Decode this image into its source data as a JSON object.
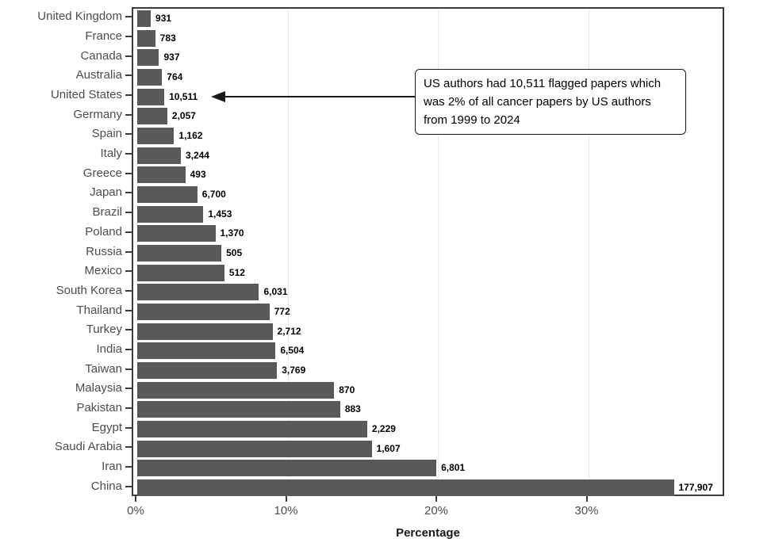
{
  "colors": {
    "background": "#ffffff",
    "bar": "#595959",
    "axis_text": "#4d4d4d",
    "value_label": "#000000",
    "panel_border": "#3b3b3b",
    "gridline": "#e8e8e8",
    "annotation_border": "#1a1a1a"
  },
  "chart_data": {
    "type": "bar",
    "orientation": "horizontal",
    "title": "",
    "xlabel": "Percentage",
    "ylabel": "",
    "xlim": [
      0,
      39.4
    ],
    "grid": "vertical major gridlines only",
    "legend": "none",
    "x_ticks": [
      {
        "value": 0,
        "label": "0%"
      },
      {
        "value": 10,
        "label": "10%"
      },
      {
        "value": 20,
        "label": "20%"
      },
      {
        "value": 30,
        "label": "30%"
      }
    ],
    "categories": [
      "United Kingdom",
      "France",
      "Canada",
      "Australia",
      "United States",
      "Germany",
      "Spain",
      "Italy",
      "Greece",
      "Japan",
      "Brazil",
      "Poland",
      "Russia",
      "Mexico",
      "South Korea",
      "Thailand",
      "Turkey",
      "India",
      "Taiwan",
      "Malaysia",
      "Pakistan",
      "Egypt",
      "Saudi Arabia",
      "Iran",
      "China"
    ],
    "values": [
      0.9,
      1.2,
      1.45,
      1.65,
      1.8,
      2.0,
      2.45,
      2.9,
      3.2,
      4.0,
      4.4,
      5.2,
      5.6,
      5.8,
      8.1,
      8.8,
      9.0,
      9.2,
      9.3,
      13.1,
      13.5,
      15.3,
      15.6,
      19.9,
      35.7
    ],
    "bar_value_labels": [
      "931",
      "783",
      "937",
      "764",
      "10,511",
      "2,057",
      "1,162",
      "3,244",
      "493",
      "6,700",
      "1,453",
      "1,370",
      "505",
      "512",
      "6,031",
      "772",
      "2,712",
      "6,504",
      "3,769",
      "870",
      "883",
      "2,229",
      "1,607",
      "6,801",
      "177,907"
    ],
    "annotation": {
      "text": "US authors had 10,511 flagged papers which was 2% of all cancer papers by US authors from 1999 to 2024",
      "lines": [
        "US authors had 10,511 flagged papers which",
        "was 2% of all cancer papers by US authors",
        "from 1999 to 2024"
      ],
      "arrow_points_to": "United States"
    }
  }
}
